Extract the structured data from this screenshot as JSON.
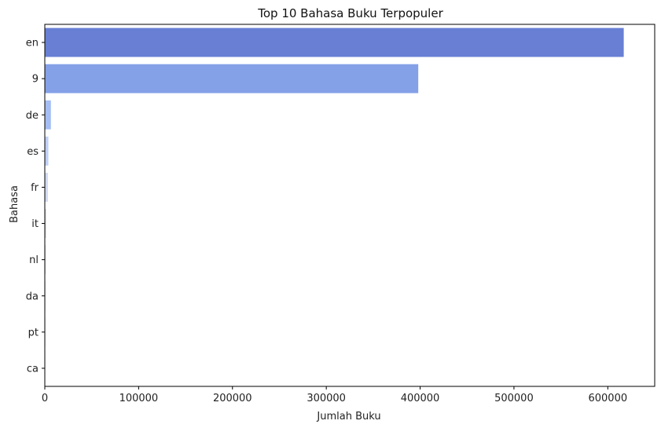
{
  "chart_data": {
    "type": "bar",
    "orientation": "horizontal",
    "title": "Top 10 Bahasa Buku Terpopuler",
    "xlabel": "Jumlah Buku",
    "ylabel": "Bahasa",
    "categories": [
      "en",
      "9",
      "de",
      "es",
      "fr",
      "it",
      "nl",
      "da",
      "pt",
      "ca"
    ],
    "values": [
      617000,
      398000,
      6500,
      3800,
      3300,
      1500,
      1000,
      700,
      600,
      500
    ],
    "xlim": [
      0,
      650000
    ],
    "xticks": [
      0,
      100000,
      200000,
      300000,
      400000,
      500000,
      600000
    ],
    "xtick_labels": [
      "0",
      "100000",
      "200000",
      "300000",
      "400000",
      "500000",
      "600000"
    ],
    "colors": [
      "#687fd4",
      "#84a0e6",
      "#a4bef4",
      "#bfcff7",
      "#d2daf2",
      "#dcdcdc",
      "#dfdfdf",
      "#e0e0e0",
      "#e1e1e1",
      "#e2e2e2"
    ],
    "grid": false,
    "legend": "none"
  }
}
